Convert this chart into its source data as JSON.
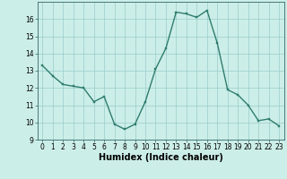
{
  "x": [
    0,
    1,
    2,
    3,
    4,
    5,
    6,
    7,
    8,
    9,
    10,
    11,
    12,
    13,
    14,
    15,
    16,
    17,
    18,
    19,
    20,
    21,
    22,
    23
  ],
  "y": [
    13.3,
    12.7,
    12.2,
    12.1,
    12.0,
    11.2,
    11.5,
    9.9,
    9.6,
    9.9,
    11.2,
    13.1,
    14.3,
    16.4,
    16.3,
    16.1,
    16.5,
    14.6,
    11.9,
    11.6,
    11.0,
    10.1,
    10.2,
    9.8
  ],
  "xlabel": "Humidex (Indice chaleur)",
  "ylim": [
    9,
    17
  ],
  "xlim": [
    -0.5,
    23.5
  ],
  "yticks": [
    9,
    10,
    11,
    12,
    13,
    14,
    15,
    16
  ],
  "xticks": [
    0,
    1,
    2,
    3,
    4,
    5,
    6,
    7,
    8,
    9,
    10,
    11,
    12,
    13,
    14,
    15,
    16,
    17,
    18,
    19,
    20,
    21,
    22,
    23
  ],
  "line_color": "#2e7d6e",
  "marker_color": "#2e7d6e",
  "bg_color": "#cceee8",
  "grid_color": "#99cccc",
  "marker": "s",
  "markersize": 1.8,
  "linewidth": 1.0,
  "xlabel_fontsize": 7,
  "tick_fontsize": 5.5
}
